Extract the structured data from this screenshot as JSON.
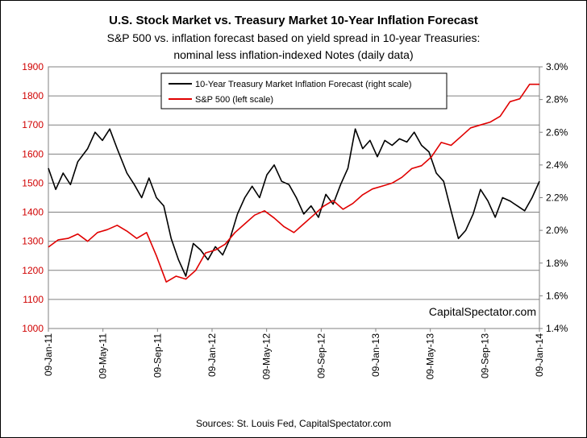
{
  "chart_data": {
    "type": "line",
    "title": "U.S. Stock Market vs. Treasury Market 10-Year Inflation Forecast",
    "subtitle_lines": [
      "S&P 500 vs. inflation forecast based on yield spread in 10-year Treasuries:",
      "nominal less inflation-indexed Notes (daily data)"
    ],
    "watermark": "CapitalSpectator.com",
    "source": "Sources: St. Louis Fed, CapitalSpectator.com",
    "x_ticks": [
      "09-Jan-11",
      "09-May-11",
      "09-Sep-11",
      "09-Jan-12",
      "09-May-12",
      "09-Sep-12",
      "09-Jan-13",
      "09-May-13",
      "09-Sep-13",
      "09-Jan-14"
    ],
    "y_left": {
      "range": [
        1000,
        1900
      ],
      "ticks": [
        "1000",
        "1100",
        "1200",
        "1300",
        "1400",
        "1500",
        "1600",
        "1700",
        "1800",
        "1900"
      ],
      "color": "#d00000"
    },
    "y_right": {
      "range": [
        1.4,
        3.0
      ],
      "ticks": [
        "1.4%",
        "1.6%",
        "1.8%",
        "2.0%",
        "2.2%",
        "2.4%",
        "2.6%",
        "2.8%",
        "3.0%"
      ]
    },
    "grid": true,
    "legend_position": "top-center",
    "series": [
      {
        "name": "10-Year Treasury Market Inflation Forecast (right scale)",
        "axis": "right",
        "color": "#000000",
        "x": [
          0,
          0.015,
          0.03,
          0.045,
          0.06,
          0.08,
          0.095,
          0.11,
          0.125,
          0.14,
          0.16,
          0.175,
          0.19,
          0.205,
          0.22,
          0.235,
          0.25,
          0.265,
          0.28,
          0.295,
          0.31,
          0.325,
          0.34,
          0.355,
          0.37,
          0.385,
          0.4,
          0.415,
          0.43,
          0.445,
          0.46,
          0.475,
          0.49,
          0.505,
          0.52,
          0.535,
          0.55,
          0.565,
          0.58,
          0.595,
          0.61,
          0.625,
          0.64,
          0.655,
          0.67,
          0.685,
          0.7,
          0.715,
          0.73,
          0.745,
          0.76,
          0.775,
          0.79,
          0.805,
          0.82,
          0.835,
          0.85,
          0.865,
          0.88,
          0.895,
          0.91,
          0.925,
          0.94,
          0.955,
          0.97,
          0.985,
          1.0
        ],
        "y": [
          2.38,
          2.25,
          2.35,
          2.28,
          2.42,
          2.5,
          2.6,
          2.55,
          2.62,
          2.5,
          2.35,
          2.28,
          2.2,
          2.32,
          2.2,
          2.15,
          1.95,
          1.82,
          1.72,
          1.92,
          1.88,
          1.82,
          1.9,
          1.85,
          1.95,
          2.1,
          2.2,
          2.27,
          2.2,
          2.34,
          2.4,
          2.3,
          2.28,
          2.2,
          2.1,
          2.15,
          2.08,
          2.22,
          2.16,
          2.28,
          2.38,
          2.62,
          2.5,
          2.55,
          2.45,
          2.55,
          2.52,
          2.56,
          2.54,
          2.6,
          2.52,
          2.48,
          2.35,
          2.3,
          2.12,
          1.95,
          2.0,
          2.1,
          2.25,
          2.18,
          2.08,
          2.2,
          2.18,
          2.15,
          2.12,
          2.2,
          2.3
        ]
      },
      {
        "name": "S&P 500 (left scale)",
        "axis": "left",
        "color": "#e00000",
        "x": [
          0,
          0.02,
          0.04,
          0.06,
          0.08,
          0.1,
          0.12,
          0.14,
          0.16,
          0.18,
          0.2,
          0.22,
          0.24,
          0.26,
          0.28,
          0.3,
          0.32,
          0.34,
          0.36,
          0.38,
          0.4,
          0.42,
          0.44,
          0.46,
          0.48,
          0.5,
          0.52,
          0.54,
          0.56,
          0.58,
          0.6,
          0.62,
          0.64,
          0.66,
          0.68,
          0.7,
          0.72,
          0.74,
          0.76,
          0.78,
          0.8,
          0.82,
          0.84,
          0.86,
          0.88,
          0.9,
          0.92,
          0.94,
          0.96,
          0.98,
          1.0
        ],
        "y": [
          1280,
          1305,
          1310,
          1325,
          1300,
          1330,
          1340,
          1355,
          1335,
          1310,
          1330,
          1250,
          1160,
          1180,
          1170,
          1200,
          1260,
          1270,
          1290,
          1330,
          1360,
          1390,
          1405,
          1380,
          1350,
          1330,
          1360,
          1390,
          1420,
          1440,
          1410,
          1430,
          1460,
          1480,
          1490,
          1500,
          1520,
          1550,
          1560,
          1590,
          1640,
          1630,
          1660,
          1690,
          1700,
          1710,
          1730,
          1780,
          1790,
          1840,
          1840
        ]
      }
    ]
  }
}
